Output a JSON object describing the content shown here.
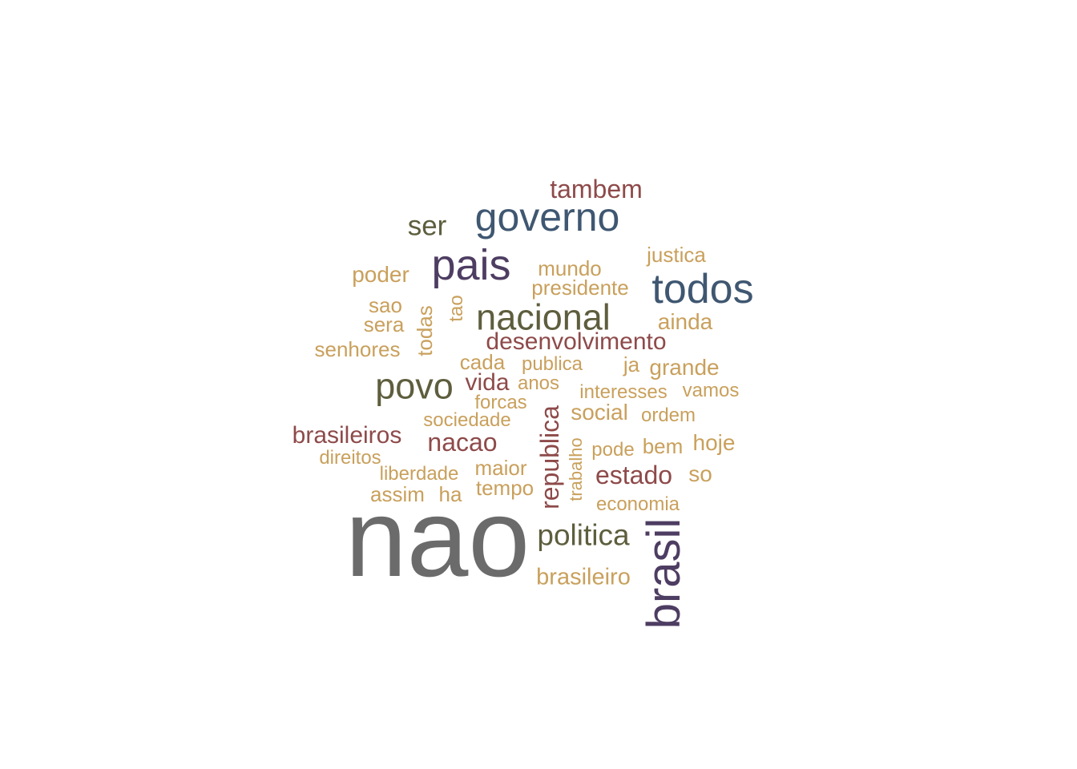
{
  "palette": {
    "gray": "#6b6b6b",
    "purple": "#4e3d62",
    "blue": "#3f5771",
    "olive": "#5e5e3e",
    "red": "#8e4a4a",
    "gold": "#c9a05c"
  },
  "words": [
    {
      "text": "nao",
      "color": "gray"
    },
    {
      "text": "brasil",
      "color": "purple"
    },
    {
      "text": "pais",
      "color": "purple"
    },
    {
      "text": "governo",
      "color": "blue"
    },
    {
      "text": "todos",
      "color": "blue"
    },
    {
      "text": "nacional",
      "color": "olive"
    },
    {
      "text": "povo",
      "color": "olive"
    },
    {
      "text": "politica",
      "color": "olive"
    },
    {
      "text": "ser",
      "color": "olive"
    },
    {
      "text": "republica",
      "color": "red"
    },
    {
      "text": "nacao",
      "color": "red"
    },
    {
      "text": "tambem",
      "color": "red"
    },
    {
      "text": "estado",
      "color": "red"
    },
    {
      "text": "brasileiros",
      "color": "red"
    },
    {
      "text": "desenvolvimento",
      "color": "red"
    },
    {
      "text": "vida",
      "color": "red"
    },
    {
      "text": "brasileiro",
      "color": "gold"
    },
    {
      "text": "todas",
      "color": "gold"
    },
    {
      "text": "poder",
      "color": "gold"
    },
    {
      "text": "ainda",
      "color": "gold"
    },
    {
      "text": "grande",
      "color": "gold"
    },
    {
      "text": "social",
      "color": "gold"
    },
    {
      "text": "senhores",
      "color": "gold"
    },
    {
      "text": "mundo",
      "color": "gold"
    },
    {
      "text": "presidente",
      "color": "gold"
    },
    {
      "text": "justica",
      "color": "gold"
    },
    {
      "text": "sao",
      "color": "gold"
    },
    {
      "text": "sera",
      "color": "gold"
    },
    {
      "text": "tao",
      "color": "gold"
    },
    {
      "text": "hoje",
      "color": "gold"
    },
    {
      "text": "so",
      "color": "gold"
    },
    {
      "text": "bem",
      "color": "gold"
    },
    {
      "text": "cada",
      "color": "gold"
    },
    {
      "text": "ja",
      "color": "gold"
    },
    {
      "text": "maior",
      "color": "gold"
    },
    {
      "text": "tempo",
      "color": "gold"
    },
    {
      "text": "ha",
      "color": "gold"
    },
    {
      "text": "assim",
      "color": "gold"
    },
    {
      "text": "trabalho",
      "color": "gold"
    },
    {
      "text": "publica",
      "color": "gold"
    },
    {
      "text": "anos",
      "color": "gold"
    },
    {
      "text": "interesses",
      "color": "gold"
    },
    {
      "text": "vamos",
      "color": "gold"
    },
    {
      "text": "forcas",
      "color": "gold"
    },
    {
      "text": "sociedade",
      "color": "gold"
    },
    {
      "text": "ordem",
      "color": "gold"
    },
    {
      "text": "direitos",
      "color": "gold"
    },
    {
      "text": "liberdade",
      "color": "gold"
    },
    {
      "text": "pode",
      "color": "gold"
    },
    {
      "text": "economia",
      "color": "gold"
    }
  ]
}
